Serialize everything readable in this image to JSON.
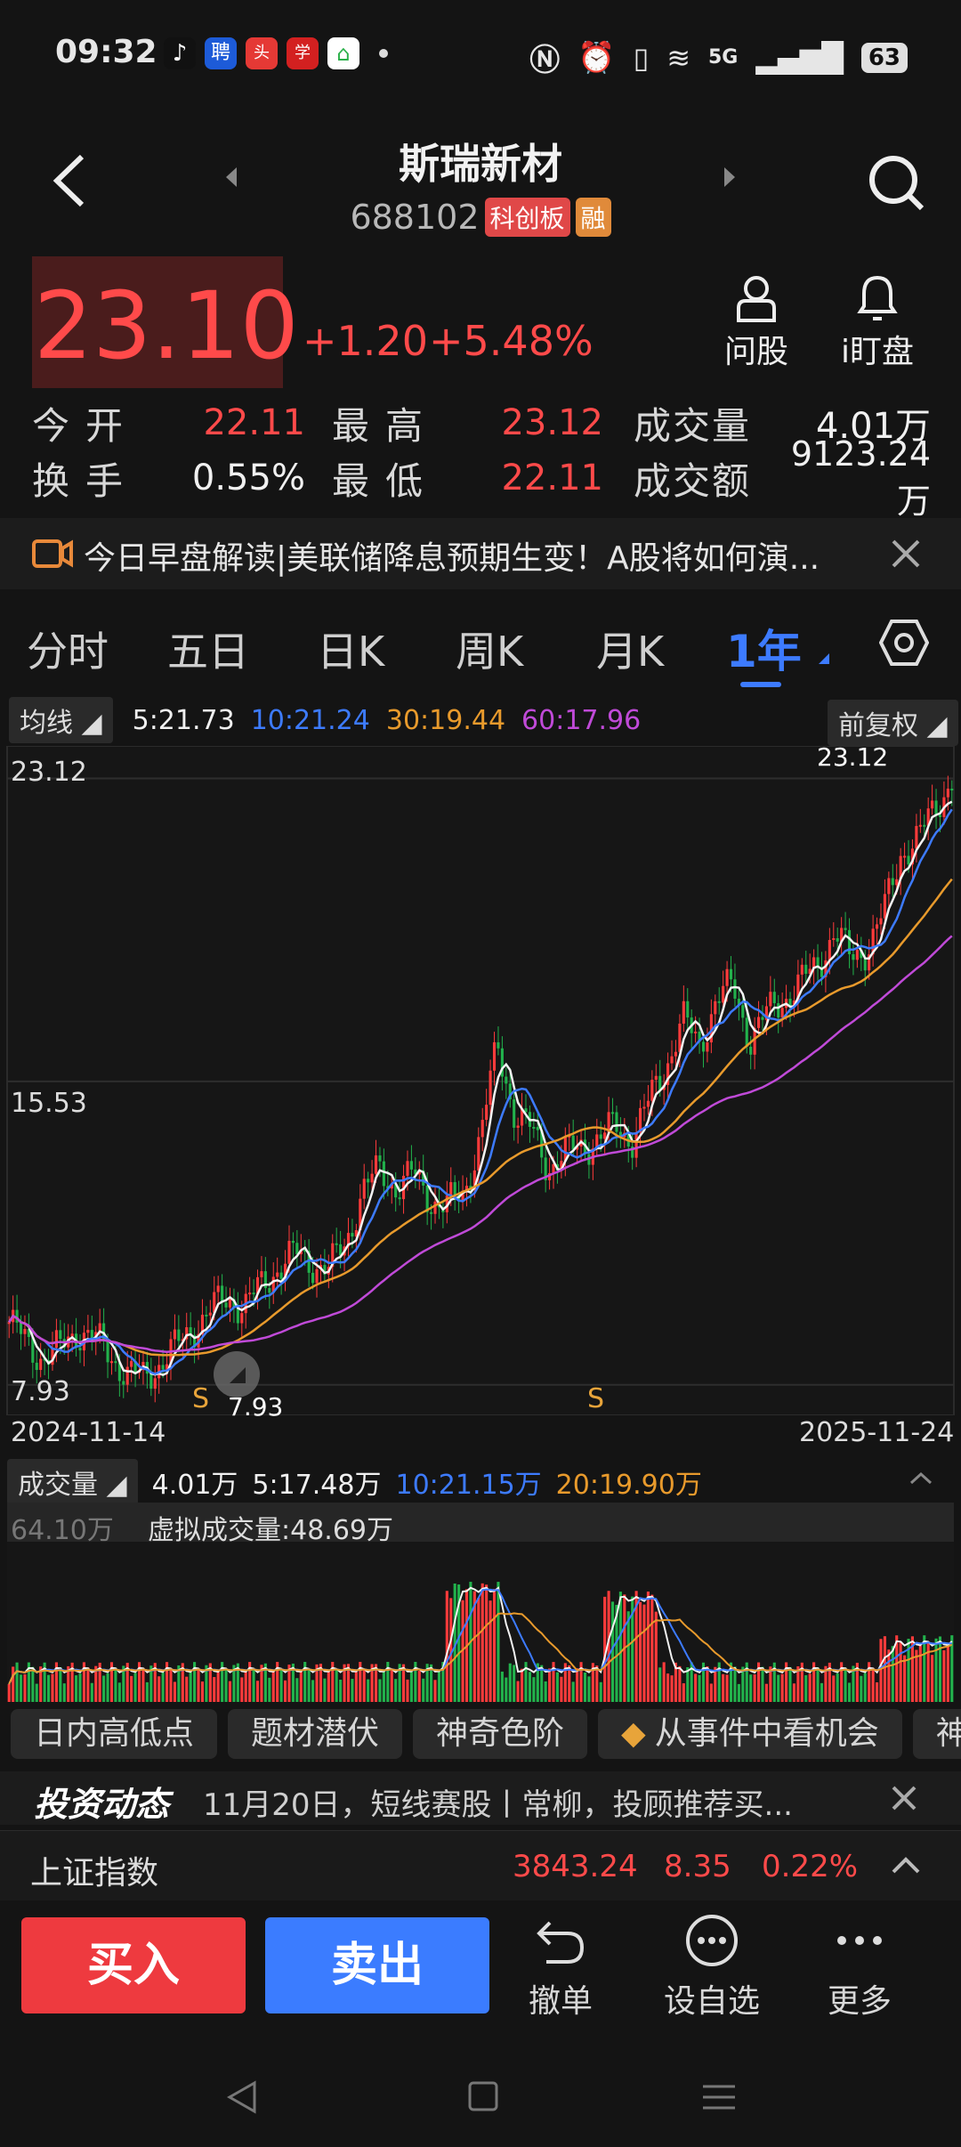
{
  "status_bar": {
    "time": "09:32",
    "network": "5G",
    "battery": "63"
  },
  "header": {
    "stock_name": "斯瑞新材",
    "stock_code": "688102",
    "tag_board": "科创板",
    "tag_margin": "融"
  },
  "quote": {
    "price": "23.10",
    "change": "+1.20",
    "change_pct": "+5.48%",
    "ask_label": "问股",
    "watch_label": "i盯盘",
    "rows": [
      {
        "l1": "今开",
        "v1": "22.11",
        "l2": "最高",
        "v2": "23.12",
        "l3": "成交量",
        "v3": "4.01万"
      },
      {
        "l1": "换手",
        "v1": "0.55%",
        "l2": "最低",
        "v2": "22.11",
        "l3": "成交额",
        "v3": "9123.24万"
      }
    ]
  },
  "news_banner": {
    "text": "今日早盘解读|美联储降息预期生变！A股将如何演..."
  },
  "tabs": [
    {
      "label": "分时",
      "active": false
    },
    {
      "label": "五日",
      "active": false
    },
    {
      "label": "日K",
      "active": false
    },
    {
      "label": "周K",
      "active": false
    },
    {
      "label": "月K",
      "active": false
    },
    {
      "label": "1年",
      "active": true
    }
  ],
  "ma_bar": {
    "selector": "均线",
    "ma5": "5:21.73",
    "ma10": "10:21.24",
    "ma30": "30:19.44",
    "ma60": "60:17.96",
    "adjust": "前复权"
  },
  "chart_data": {
    "type": "candlestick",
    "y_labels": [
      "23.12",
      "15.53",
      "7.93"
    ],
    "high_marker": "23.12",
    "low_marker": "7.93",
    "s_marker": "S",
    "date_start": "2024-11-14",
    "date_end": "2025-11-24",
    "close_series_approx": [
      9.5,
      9.0,
      8.6,
      8.8,
      9.3,
      9.1,
      8.7,
      8.2,
      8.1,
      8.5,
      8.9,
      9.4,
      9.8,
      10.1,
      9.9,
      10.4,
      10.9,
      11.2,
      11.0,
      10.8,
      11.5,
      12.8,
      13.3,
      12.9,
      13.2,
      12.6,
      12.4,
      12.7,
      14.2,
      16.4,
      14.8,
      14.3,
      13.4,
      13.7,
      13.9,
      14.1,
      14.4,
      14.1,
      15.0,
      15.9,
      17.1,
      16.4,
      17.6,
      17.9,
      16.6,
      17.2,
      17.6,
      18.0,
      18.4,
      19.3,
      18.6,
      18.9,
      19.8,
      21.3,
      21.6,
      22.4,
      23.1
    ]
  },
  "volume_bar": {
    "selector": "成交量",
    "vol": "4.01万",
    "ma5": "5:17.48万",
    "ma10": "10:21.15万",
    "ma20": "20:19.90万",
    "max_label": "64.10万",
    "virtual": "虚拟成交量:48.69万"
  },
  "chips": [
    "日内高低点",
    "题材潜伏",
    "神奇色阶",
    "从事件中看机会",
    "神"
  ],
  "invest_news": {
    "brand": "投资动态",
    "text": "11月20日，短线赛股丨常柳，投顾推荐买..."
  },
  "index_bar": {
    "name": "上证指数",
    "value": "3843.24",
    "change": "8.35",
    "pct": "0.22%"
  },
  "actions": {
    "buy": "买入",
    "sell": "卖出",
    "cancel": "撤单",
    "watchlist": "设自选",
    "more": "更多"
  }
}
